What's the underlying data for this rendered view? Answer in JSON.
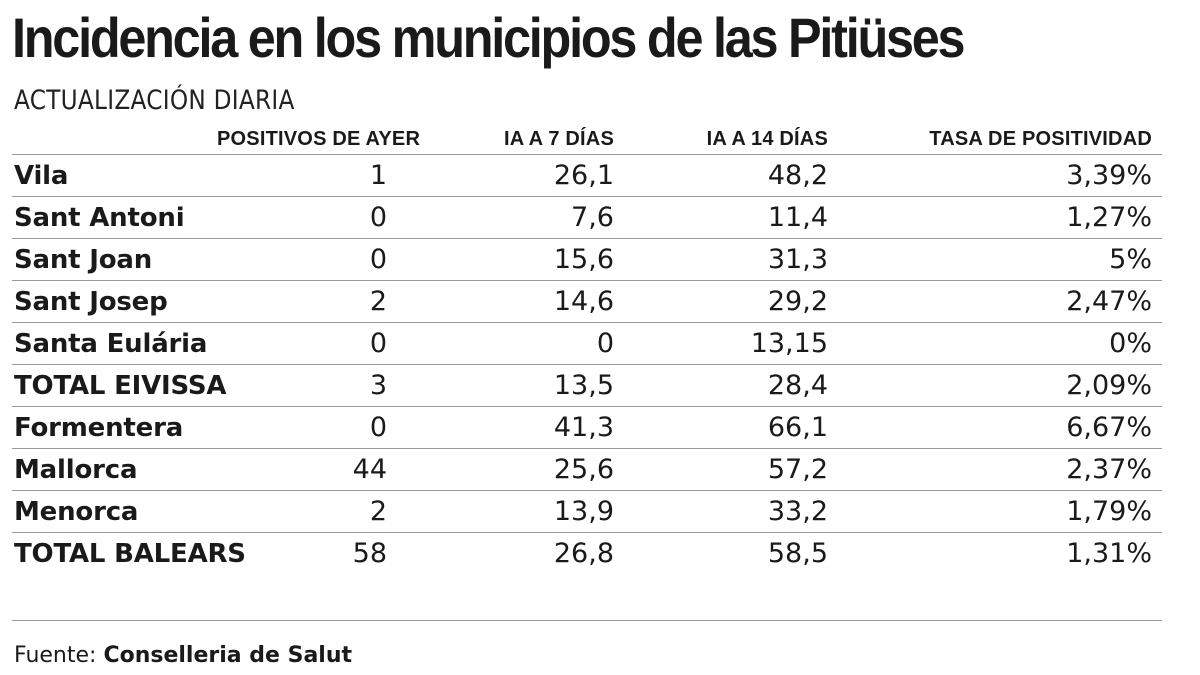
{
  "chart_data": {
    "type": "table",
    "title": "Incidencia en los municipios de las Pitiüses",
    "subtitle": "ACTUALIZACIÓN DIARIA",
    "columns": [
      "",
      "POSITIVOS DE AYER",
      "IA A 7 DÍAS",
      "IA A 14 DÍAS",
      "TASA DE POSITIVIDAD"
    ],
    "rows": [
      [
        "Vila",
        "1",
        "26,1",
        "48,2",
        "3,39%"
      ],
      [
        "Sant Antoni",
        "0",
        "7,6",
        "11,4",
        "1,27%"
      ],
      [
        "Sant Joan",
        "0",
        "15,6",
        "31,3",
        "5%"
      ],
      [
        "Sant Josep",
        "2",
        "14,6",
        "29,2",
        "2,47%"
      ],
      [
        "Santa Eulária",
        "0",
        "0",
        "13,15",
        "0%"
      ],
      [
        "TOTAL EIVISSA",
        "3",
        "13,5",
        "28,4",
        "2,09%"
      ],
      [
        "Formentera",
        "0",
        "41,3",
        "66,1",
        "6,67%"
      ],
      [
        "Mallorca",
        "44",
        "25,6",
        "57,2",
        "2,37%"
      ],
      [
        "Menorca",
        "2",
        "13,9",
        "33,2",
        "1,79%"
      ],
      [
        "TOTAL BALEARS",
        "58",
        "26,8",
        "58,5",
        "1,31%"
      ]
    ],
    "source_label": "Fuente:",
    "source": "Conselleria de Salut"
  }
}
